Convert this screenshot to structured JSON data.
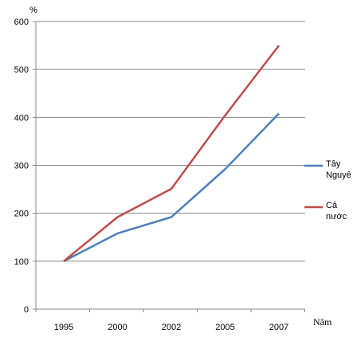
{
  "chart_data": {
    "type": "line",
    "y_unit_label": "%",
    "x_unit_label": "Năm",
    "categories": [
      "1995",
      "2000",
      "2002",
      "2005",
      "2007"
    ],
    "ylim": [
      0,
      600
    ],
    "y_ticks": [
      "0",
      "100",
      "200",
      "300",
      "400",
      "500",
      "600"
    ],
    "grid": true,
    "legend_position": "right",
    "series": [
      {
        "name_lines": [
          "Tây",
          "Nguyê"
        ],
        "color": "#4a7ebb",
        "values": [
          100,
          158,
          192,
          292,
          408
        ]
      },
      {
        "name_lines": [
          "Cả",
          "nước"
        ],
        "color": "#be4b48",
        "values": [
          100,
          192,
          251,
          404,
          550
        ]
      }
    ]
  }
}
